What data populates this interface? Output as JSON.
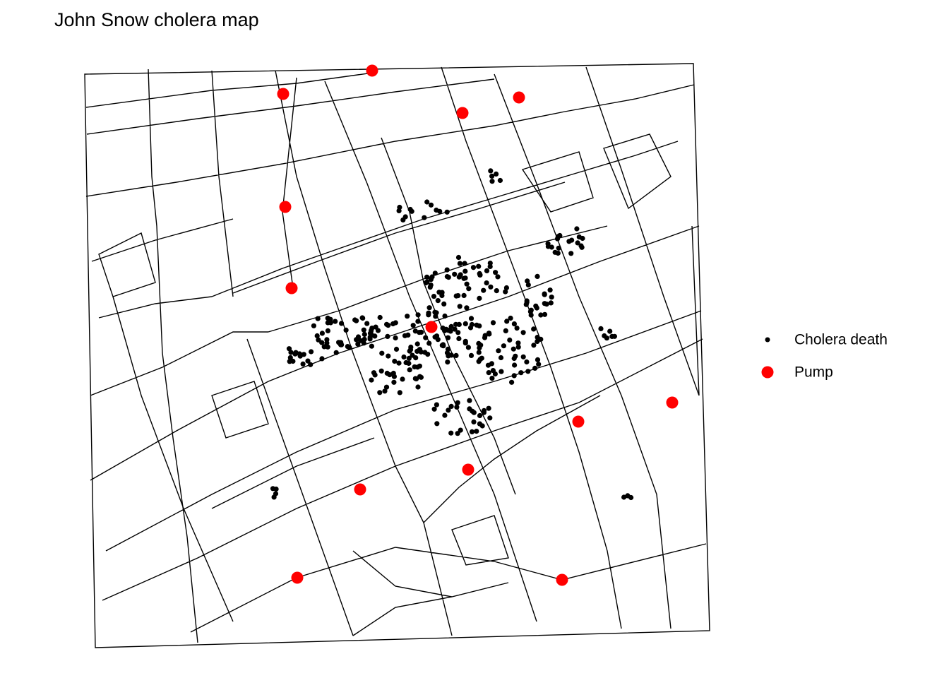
{
  "title": "John Snow cholera map",
  "legend": {
    "items": [
      "Cholera death",
      "Pump"
    ]
  }
}
